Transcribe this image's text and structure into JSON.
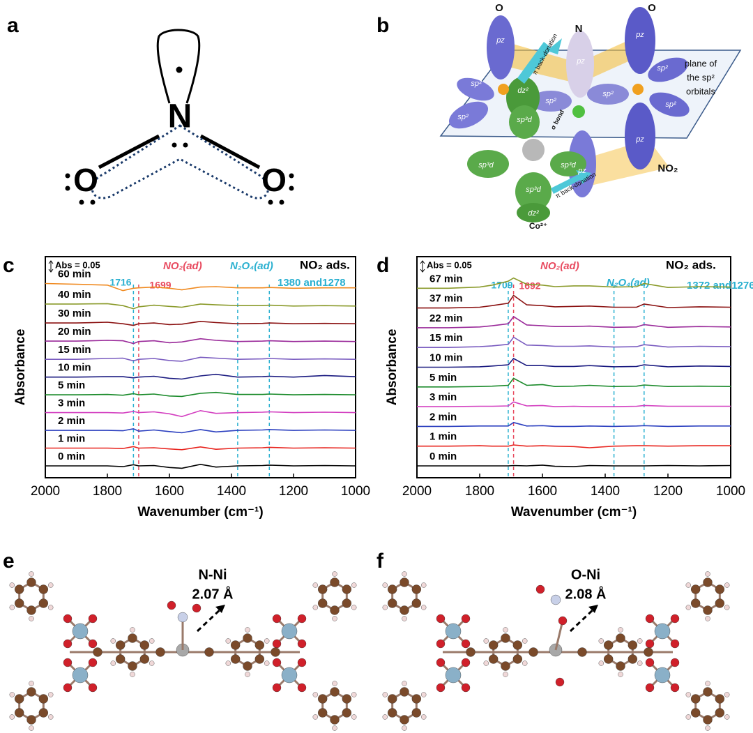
{
  "panel_labels": [
    "a",
    "b",
    "c",
    "d",
    "e",
    "f"
  ],
  "lewis": {
    "center": "N",
    "left": "O",
    "right": "O"
  },
  "orbital_diagram": {
    "labels": [
      "O",
      "N",
      "O",
      "plane of",
      "the sp²",
      "orbitals",
      "NO₂",
      "Co²⁺",
      "π back-donation",
      "σ bond",
      "π back-donation",
      "pz",
      "pz",
      "pz",
      "pz",
      "pz",
      "sp²",
      "sp²",
      "sp²",
      "sp²",
      "sp²",
      "sp²",
      "dz²",
      "sp³d",
      "sp³d",
      "sp³d",
      "sp³d",
      "dz²"
    ]
  },
  "chart_data": [
    {
      "type": "line",
      "xlabel": "Wavenumber (cm⁻¹)",
      "ylabel": "Absorbance",
      "scale_bar": "Abs = 0.05",
      "corner_label": "NO₂ ads.",
      "annotations": [
        {
          "text": "NO₂(ad)",
          "color": "#e84a5f"
        },
        {
          "text": "N₂O₄(ad)",
          "color": "#2ab0d0"
        },
        {
          "text": "1380 and1278",
          "color": "#2ab0d0"
        }
      ],
      "markers": [
        {
          "value": 1716,
          "color": "#2ab0d0"
        },
        {
          "value": 1699,
          "color": "#e84a5f"
        },
        {
          "value": 1380,
          "color": "#2ab0d0"
        },
        {
          "value": 1278,
          "color": "#2ab0d0"
        }
      ],
      "x": [
        2000,
        1900,
        1800,
        1750,
        1716,
        1699,
        1650,
        1600,
        1560,
        1500,
        1450,
        1380,
        1300,
        1278,
        1200,
        1100,
        1000
      ],
      "xlim": [
        2000,
        1000
      ],
      "xticks": [
        2000,
        1800,
        1600,
        1400,
        1200,
        1000
      ],
      "ylim": [
        0,
        0.56
      ],
      "series": [
        {
          "name": "0 min",
          "color": "#000000",
          "values": [
            0.03,
            0.03,
            0.03,
            0.028,
            0.033,
            0.03,
            0.031,
            0.026,
            0.024,
            0.034,
            0.027,
            0.03,
            0.031,
            0.032,
            0.03,
            0.031,
            0.03
          ]
        },
        {
          "name": "1 min",
          "color": "#e8251f",
          "values": [
            0.075,
            0.075,
            0.075,
            0.074,
            0.079,
            0.075,
            0.076,
            0.073,
            0.071,
            0.078,
            0.072,
            0.075,
            0.076,
            0.077,
            0.075,
            0.076,
            0.075
          ]
        },
        {
          "name": "2 min",
          "color": "#2b3fbf",
          "values": [
            0.12,
            0.12,
            0.12,
            0.119,
            0.124,
            0.118,
            0.121,
            0.117,
            0.114,
            0.122,
            0.116,
            0.12,
            0.121,
            0.122,
            0.12,
            0.121,
            0.12
          ]
        },
        {
          "name": "3 min",
          "color": "#d33fc0",
          "values": [
            0.165,
            0.165,
            0.165,
            0.164,
            0.168,
            0.165,
            0.167,
            0.162,
            0.155,
            0.17,
            0.163,
            0.165,
            0.166,
            0.167,
            0.165,
            0.166,
            0.165
          ]
        },
        {
          "name": "5 min",
          "color": "#1a8a2a",
          "values": [
            0.21,
            0.21,
            0.211,
            0.209,
            0.213,
            0.21,
            0.212,
            0.207,
            0.206,
            0.214,
            0.216,
            0.211,
            0.211,
            0.212,
            0.21,
            0.211,
            0.21
          ]
        },
        {
          "name": "10 min",
          "color": "#1a1a80",
          "values": [
            0.255,
            0.255,
            0.256,
            0.256,
            0.253,
            0.255,
            0.257,
            0.252,
            0.25,
            0.258,
            0.262,
            0.255,
            0.256,
            0.257,
            0.255,
            0.259,
            0.256
          ]
        },
        {
          "name": "15 min",
          "color": "#7a5cc0",
          "values": [
            0.3,
            0.3,
            0.302,
            0.303,
            0.296,
            0.3,
            0.302,
            0.297,
            0.295,
            0.305,
            0.303,
            0.3,
            0.301,
            0.302,
            0.3,
            0.301,
            0.3
          ]
        },
        {
          "name": "20 min",
          "color": "#9a2a9a",
          "values": [
            0.346,
            0.346,
            0.348,
            0.347,
            0.34,
            0.345,
            0.347,
            0.342,
            0.344,
            0.352,
            0.348,
            0.345,
            0.346,
            0.347,
            0.345,
            0.346,
            0.345
          ]
        },
        {
          "name": "30 min",
          "color": "#8a1010",
          "values": [
            0.392,
            0.392,
            0.394,
            0.39,
            0.386,
            0.39,
            0.392,
            0.388,
            0.389,
            0.396,
            0.393,
            0.39,
            0.391,
            0.392,
            0.39,
            0.391,
            0.39
          ]
        },
        {
          "name": "40 min",
          "color": "#8a9a2a",
          "values": [
            0.44,
            0.44,
            0.441,
            0.436,
            0.428,
            0.433,
            0.437,
            0.434,
            0.432,
            0.44,
            0.438,
            0.436,
            0.436,
            0.437,
            0.435,
            0.436,
            0.435
          ]
        },
        {
          "name": "60 min",
          "color": "#f08a20",
          "values": [
            0.492,
            0.49,
            0.488,
            0.474,
            0.48,
            0.481,
            0.483,
            0.48,
            0.476,
            0.483,
            0.484,
            0.481,
            0.481,
            0.482,
            0.48,
            0.481,
            0.481
          ]
        }
      ]
    },
    {
      "type": "line",
      "xlabel": "Wavenumber (cm⁻¹)",
      "ylabel": "Absorbance",
      "scale_bar": "Abs = 0.05",
      "corner_label": "NO₂ ads.",
      "annotations": [
        {
          "text": "NO₂(ad)",
          "color": "#e84a5f"
        },
        {
          "text": "N₂O₄(ad)",
          "color": "#2ab0d0"
        },
        {
          "text": "1372 and1276",
          "color": "#2ab0d0"
        }
      ],
      "markers": [
        {
          "value": 1709,
          "color": "#2ab0d0"
        },
        {
          "value": 1692,
          "color": "#e84a5f"
        },
        {
          "value": 1372,
          "color": "#2ab0d0"
        },
        {
          "value": 1276,
          "color": "#2ab0d0"
        }
      ],
      "x": [
        2000,
        1900,
        1800,
        1760,
        1709,
        1692,
        1650,
        1600,
        1560,
        1500,
        1450,
        1372,
        1300,
        1276,
        1200,
        1100,
        1000
      ],
      "xlim": [
        2000,
        1000
      ],
      "xticks": [
        2000,
        1800,
        1600,
        1400,
        1200,
        1000
      ],
      "ylim": [
        0,
        0.56
      ],
      "series": [
        {
          "name": "0 min",
          "color": "#000000",
          "values": [
            0.03,
            0.03,
            0.03,
            0.03,
            0.03,
            0.031,
            0.03,
            0.032,
            0.029,
            0.028,
            0.031,
            0.03,
            0.03,
            0.03,
            0.031,
            0.03,
            0.031
          ]
        },
        {
          "name": "1 min",
          "color": "#e8251f",
          "values": [
            0.08,
            0.08,
            0.081,
            0.08,
            0.08,
            0.083,
            0.08,
            0.081,
            0.08,
            0.079,
            0.076,
            0.08,
            0.081,
            0.081,
            0.08,
            0.081,
            0.081
          ]
        },
        {
          "name": "2 min",
          "color": "#2b3fbf",
          "values": [
            0.13,
            0.13,
            0.131,
            0.131,
            0.131,
            0.14,
            0.131,
            0.132,
            0.13,
            0.13,
            0.131,
            0.13,
            0.131,
            0.132,
            0.13,
            0.131,
            0.131
          ]
        },
        {
          "name": "3 min",
          "color": "#d33fc0",
          "values": [
            0.18,
            0.18,
            0.181,
            0.181,
            0.182,
            0.192,
            0.182,
            0.183,
            0.18,
            0.181,
            0.18,
            0.18,
            0.181,
            0.183,
            0.181,
            0.181,
            0.181
          ]
        },
        {
          "name": "5 min",
          "color": "#1a8a2a",
          "values": [
            0.23,
            0.23,
            0.231,
            0.232,
            0.234,
            0.252,
            0.234,
            0.236,
            0.231,
            0.232,
            0.234,
            0.231,
            0.232,
            0.235,
            0.231,
            0.232,
            0.231
          ]
        },
        {
          "name": "10 min",
          "color": "#1a1a80",
          "values": [
            0.28,
            0.28,
            0.281,
            0.283,
            0.286,
            0.302,
            0.284,
            0.284,
            0.282,
            0.282,
            0.284,
            0.281,
            0.282,
            0.286,
            0.281,
            0.283,
            0.282
          ]
        },
        {
          "name": "15 min",
          "color": "#7a5cc0",
          "values": [
            0.33,
            0.33,
            0.332,
            0.334,
            0.338,
            0.356,
            0.336,
            0.335,
            0.333,
            0.333,
            0.334,
            0.331,
            0.332,
            0.337,
            0.331,
            0.333,
            0.332
          ]
        },
        {
          "name": "22 min",
          "color": "#9a2a9a",
          "values": [
            0.38,
            0.38,
            0.382,
            0.385,
            0.39,
            0.408,
            0.387,
            0.385,
            0.383,
            0.383,
            0.384,
            0.381,
            0.382,
            0.388,
            0.381,
            0.383,
            0.382
          ]
        },
        {
          "name": "37 min",
          "color": "#8a1010",
          "values": [
            0.43,
            0.43,
            0.432,
            0.436,
            0.442,
            0.462,
            0.438,
            0.436,
            0.433,
            0.434,
            0.435,
            0.432,
            0.432,
            0.44,
            0.431,
            0.433,
            0.432
          ]
        },
        {
          "name": "67 min",
          "color": "#8a9a2a",
          "values": [
            0.48,
            0.48,
            0.483,
            0.488,
            0.498,
            0.506,
            0.49,
            0.488,
            0.484,
            0.486,
            0.486,
            0.483,
            0.484,
            0.492,
            0.482,
            0.484,
            0.483
          ]
        }
      ]
    }
  ],
  "structures": [
    {
      "bond": "N-Ni",
      "distance": "2.07 Å"
    },
    {
      "bond": "O-Ni",
      "distance": "2.08 Å"
    }
  ]
}
